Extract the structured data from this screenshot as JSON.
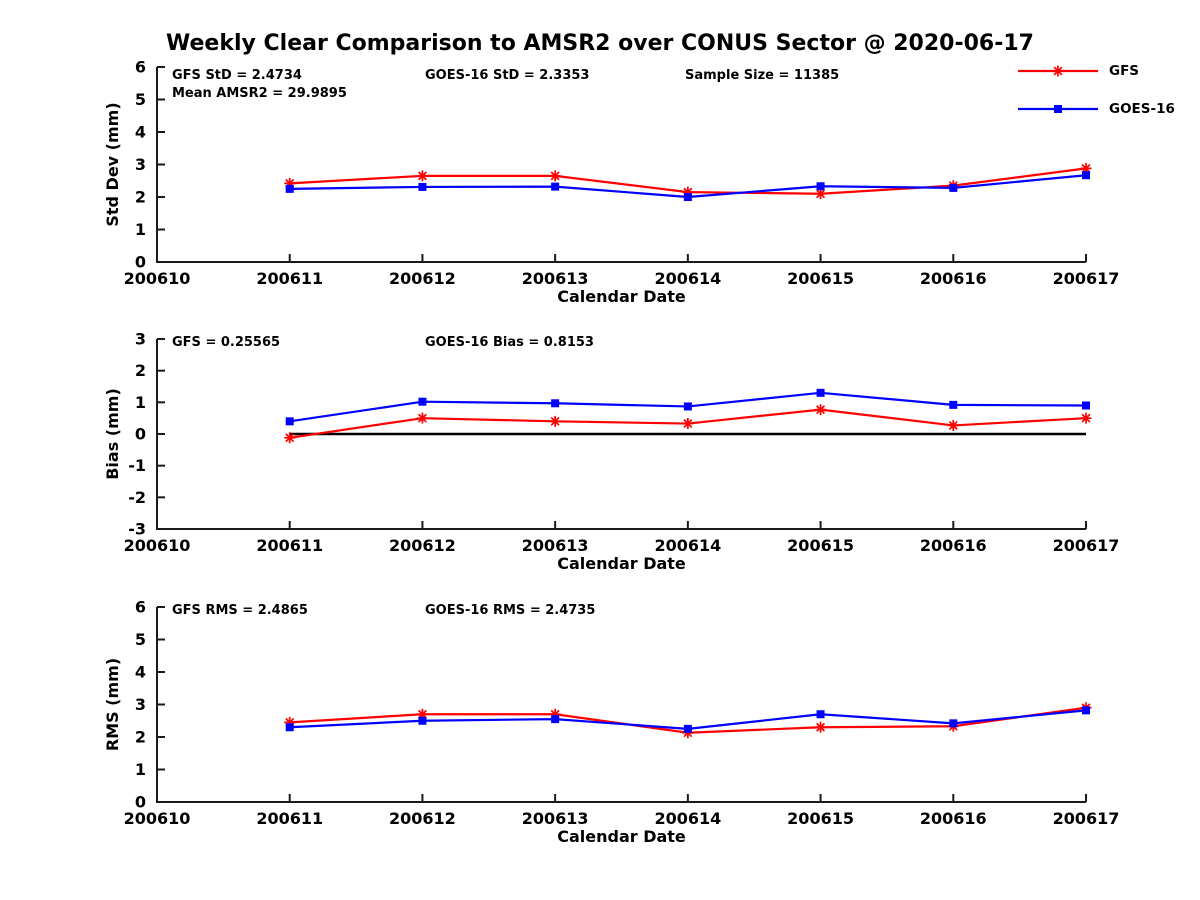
{
  "title": "Weekly Clear Comparison to AMSR2 over CONUS Sector @ 2020-06-17",
  "colors": {
    "gfs": "#ff0000",
    "goes16": "#0000ff",
    "axis": "#1a1a1a",
    "zero_line": "#000000",
    "text": "#000000",
    "background": "#ffffff"
  },
  "legend": {
    "position": "top-right",
    "items": [
      {
        "label": "GFS",
        "color": "#ff0000",
        "marker": "asterisk"
      },
      {
        "label": "GOES-16",
        "color": "#0000ff",
        "marker": "square"
      }
    ]
  },
  "chart_data": [
    {
      "type": "line",
      "name": "std-dev",
      "ylabel": "Std Dev (mm)",
      "xlabel": "Calendar Date",
      "ylim": [
        0,
        6
      ],
      "yticks": [
        0,
        1,
        2,
        3,
        4,
        5,
        6
      ],
      "grid": false,
      "x_categories": [
        "200610",
        "200611",
        "200612",
        "200613",
        "200614",
        "200615",
        "200616",
        "200617"
      ],
      "x_series": [
        "200611",
        "200612",
        "200613",
        "200614",
        "200615",
        "200616",
        "200617"
      ],
      "series": [
        {
          "name": "GFS",
          "color": "#ff0000",
          "marker": "asterisk",
          "values": [
            2.42,
            2.65,
            2.65,
            2.15,
            2.1,
            2.35,
            2.88
          ]
        },
        {
          "name": "GOES-16",
          "color": "#0000ff",
          "marker": "square",
          "values": [
            2.25,
            2.31,
            2.32,
            2.0,
            2.33,
            2.28,
            2.67
          ]
        }
      ],
      "zero_line": false,
      "annotations": [
        "GFS StD = 2.4734",
        "Mean AMSR2 = 29.9895",
        "GOES-16 StD = 2.3353",
        "Sample Size = 11385"
      ]
    },
    {
      "type": "line",
      "name": "bias",
      "ylabel": "Bias (mm)",
      "xlabel": "Calendar Date",
      "ylim": [
        -3,
        3
      ],
      "yticks": [
        -3,
        -2,
        -1,
        0,
        1,
        2,
        3
      ],
      "grid": false,
      "x_categories": [
        "200610",
        "200611",
        "200612",
        "200613",
        "200614",
        "200615",
        "200616",
        "200617"
      ],
      "x_series": [
        "200611",
        "200612",
        "200613",
        "200614",
        "200615",
        "200616",
        "200617"
      ],
      "series": [
        {
          "name": "GFS",
          "color": "#ff0000",
          "marker": "asterisk",
          "values": [
            -0.12,
            0.5,
            0.4,
            0.33,
            0.77,
            0.27,
            0.5
          ]
        },
        {
          "name": "GOES-16",
          "color": "#0000ff",
          "marker": "square",
          "values": [
            0.4,
            1.02,
            0.97,
            0.87,
            1.3,
            0.92,
            0.9
          ]
        }
      ],
      "zero_line": true,
      "annotations": [
        "GFS = 0.25565",
        "GOES-16 Bias  = 0.8153"
      ]
    },
    {
      "type": "line",
      "name": "rms",
      "ylabel": "RMS (mm)",
      "xlabel": "Calendar Date",
      "ylim": [
        0,
        6
      ],
      "yticks": [
        0,
        1,
        2,
        3,
        4,
        5,
        6
      ],
      "grid": false,
      "x_categories": [
        "200610",
        "200611",
        "200612",
        "200613",
        "200614",
        "200615",
        "200616",
        "200617"
      ],
      "x_series": [
        "200611",
        "200612",
        "200613",
        "200614",
        "200615",
        "200616",
        "200617"
      ],
      "series": [
        {
          "name": "GFS",
          "color": "#ff0000",
          "marker": "asterisk",
          "values": [
            2.45,
            2.7,
            2.7,
            2.13,
            2.3,
            2.33,
            2.9
          ]
        },
        {
          "name": "GOES-16",
          "color": "#0000ff",
          "marker": "square",
          "values": [
            2.3,
            2.5,
            2.55,
            2.25,
            2.7,
            2.42,
            2.82
          ]
        }
      ],
      "zero_line": false,
      "annotations": [
        "GFS RMS = 2.4865",
        "GOES-16 RMS = 2.4735"
      ]
    }
  ]
}
